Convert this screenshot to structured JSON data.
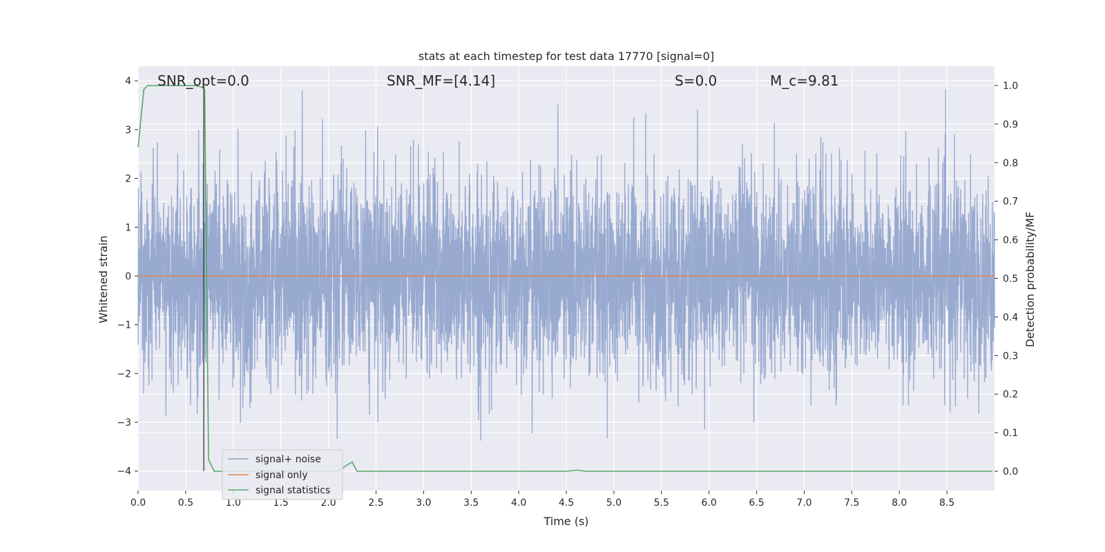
{
  "chart_data": {
    "type": "line",
    "title": "stats at each timestep for test data 17770 [signal=0]",
    "xlabel": "Time (s)",
    "ylabel": "Whitened strain",
    "y2label": "Detection probability/MF",
    "xlim": [
      0.0,
      9.0
    ],
    "ylim": [
      -4.4,
      4.3
    ],
    "y2lim": [
      -0.05,
      1.05
    ],
    "xticks": [
      "0.0",
      "0.5",
      "1.0",
      "1.5",
      "2.0",
      "2.5",
      "3.0",
      "3.5",
      "4.0",
      "4.5",
      "5.0",
      "5.5",
      "6.0",
      "6.5",
      "7.0",
      "7.5",
      "8.0",
      "8.5"
    ],
    "yticks": [
      "4",
      "3",
      "2",
      "1",
      "0",
      "−1",
      "−2",
      "−3",
      "−4"
    ],
    "y2ticks": [
      "1.0",
      "0.9",
      "0.8",
      "0.7",
      "0.6",
      "0.5",
      "0.4",
      "0.3",
      "0.2",
      "0.1",
      "0.0"
    ],
    "grid": true,
    "legend_position": "lower-left",
    "annotations": [
      {
        "text": "SNR_opt=0.0",
        "x": 0.2,
        "y": 4.0
      },
      {
        "text": "SNR_MF=[4.14]",
        "x": 2.6,
        "y": 4.0
      },
      {
        "text": "S=0.0",
        "x": 5.6,
        "y": 4.0
      },
      {
        "text": "M_c=9.81",
        "x": 6.6,
        "y": 4.0
      }
    ],
    "vertical_marker_x": 0.69,
    "series": [
      {
        "name": "signal+ noise",
        "axis": "left",
        "color": "#8fa3cc",
        "kind": "noise",
        "sigma": 1.0,
        "x_range": [
          0.0,
          9.0
        ]
      },
      {
        "name": "signal only",
        "axis": "left",
        "color": "#dd8452",
        "x": [
          0.0,
          9.0
        ],
        "y": [
          0.0,
          0.0
        ]
      },
      {
        "name": "signal statistics",
        "axis": "right",
        "color": "#55a868",
        "x": [
          0.0,
          0.06,
          0.1,
          0.2,
          0.4,
          0.6,
          0.68,
          0.7,
          0.74,
          0.8,
          1.0,
          1.5,
          2.0,
          2.1,
          2.2,
          2.25,
          2.3,
          2.5,
          4.5,
          4.62,
          4.7,
          5.0,
          8.98
        ],
        "y": [
          0.84,
          0.99,
          1.0,
          1.0,
          1.0,
          1.0,
          0.995,
          0.99,
          0.03,
          0.0,
          0.0,
          0.0,
          0.0,
          0.0,
          0.017,
          0.024,
          0.0,
          0.0,
          0.0,
          0.003,
          0.0,
          0.0,
          0.0
        ]
      }
    ]
  }
}
